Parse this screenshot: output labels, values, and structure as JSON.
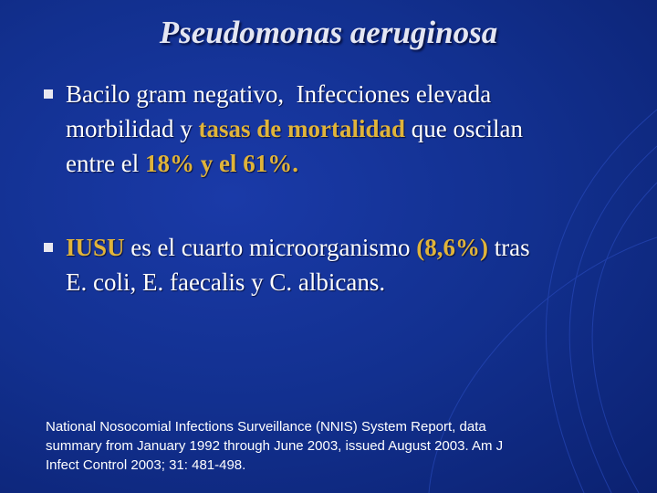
{
  "title": "Pseudomonas aeruginosa",
  "bullets": [
    {
      "lines": [
        [
          {
            "text": "Bacilo gram negativo,  Infecciones elevada"
          }
        ],
        [
          {
            "text": "morbilidad y "
          },
          {
            "text": "tasas de mortalidad",
            "emphasis": true
          },
          {
            "text": " que oscilan"
          }
        ],
        [
          {
            "text": "entre el "
          },
          {
            "text": "18% y el 61%.",
            "emphasis": true
          }
        ]
      ]
    },
    {
      "lines": [
        [
          {
            "text": "IUSU",
            "emphasis": true
          },
          {
            "text": " es el cuarto microorganismo "
          },
          {
            "text": "(8,6%)",
            "emphasis": true
          },
          {
            "text": " tras"
          }
        ],
        [
          {
            "text": "E. coli, E. faecalis y C. albicans."
          }
        ]
      ]
    }
  ],
  "reference": {
    "lines": [
      "National Nosocomial Infections Surveillance (NNIS) System Report, data",
      "summary from January 1992 through June 2003, issued August 2003. Am J",
      "Infect Control 2003; 31: 481-498."
    ]
  }
}
